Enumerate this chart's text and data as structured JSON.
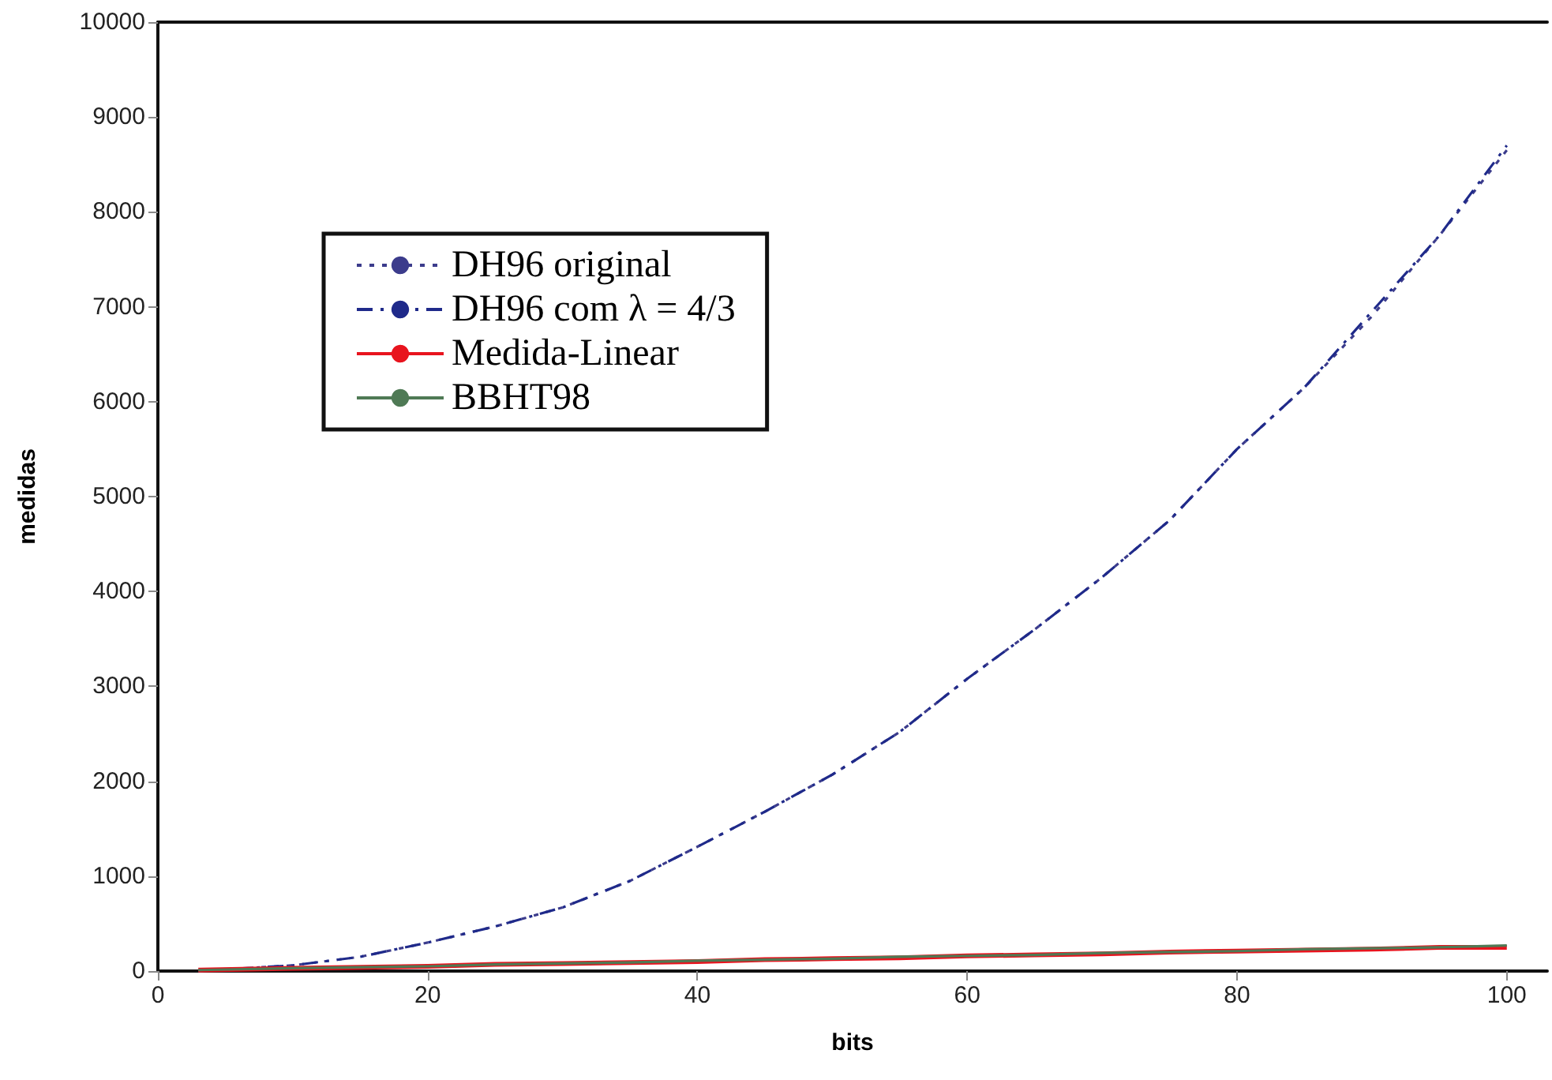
{
  "chart_data": {
    "type": "line",
    "xlabel": "bits",
    "ylabel": "medidas",
    "xlim": [
      0,
      103
    ],
    "xticks": [
      0,
      20,
      40,
      60,
      80,
      100
    ],
    "ylim": [
      0,
      10000
    ],
    "yticks": [
      0,
      1000,
      2000,
      3000,
      4000,
      5000,
      6000,
      7000,
      8000,
      9000,
      10000
    ],
    "grid": false,
    "legend": "top left",
    "marker": "none",
    "x": [
      3,
      10,
      15,
      20,
      25,
      30,
      35,
      40,
      45,
      50,
      55,
      60,
      65,
      70,
      75,
      80,
      85,
      90,
      95,
      100
    ],
    "series": [
      {
        "name": "DH96 original",
        "color": "#3c3c8c",
        "line_style": "dotted",
        "values": [
          0,
          60,
          150,
          300,
          470,
          670,
          950,
          1310,
          1680,
          2070,
          2520,
          3080,
          3600,
          4150,
          4750,
          5500,
          6150,
          6900,
          7750,
          8650
        ]
      },
      {
        "name": "DH96 com λ = 4/3",
        "color": "#1f2a8a",
        "line_style": "dashed",
        "values": [
          0,
          60,
          150,
          300,
          470,
          670,
          950,
          1310,
          1680,
          2070,
          2520,
          3080,
          3600,
          4150,
          4750,
          5500,
          6150,
          6950,
          7750,
          8700
        ]
      },
      {
        "name": "Medida-Linear",
        "color": "#e8141e",
        "line_style": "solid",
        "values": [
          10,
          30,
          40,
          50,
          70,
          80,
          90,
          100,
          120,
          130,
          140,
          160,
          170,
          180,
          200,
          210,
          220,
          230,
          250,
          250
        ]
      },
      {
        "name": "BBHT98",
        "color": "#4f7a55",
        "line_style": "solid",
        "values": [
          10,
          30,
          40,
          50,
          70,
          80,
          90,
          110,
          120,
          130,
          150,
          160,
          170,
          190,
          200,
          210,
          230,
          240,
          250,
          270
        ]
      }
    ]
  }
}
